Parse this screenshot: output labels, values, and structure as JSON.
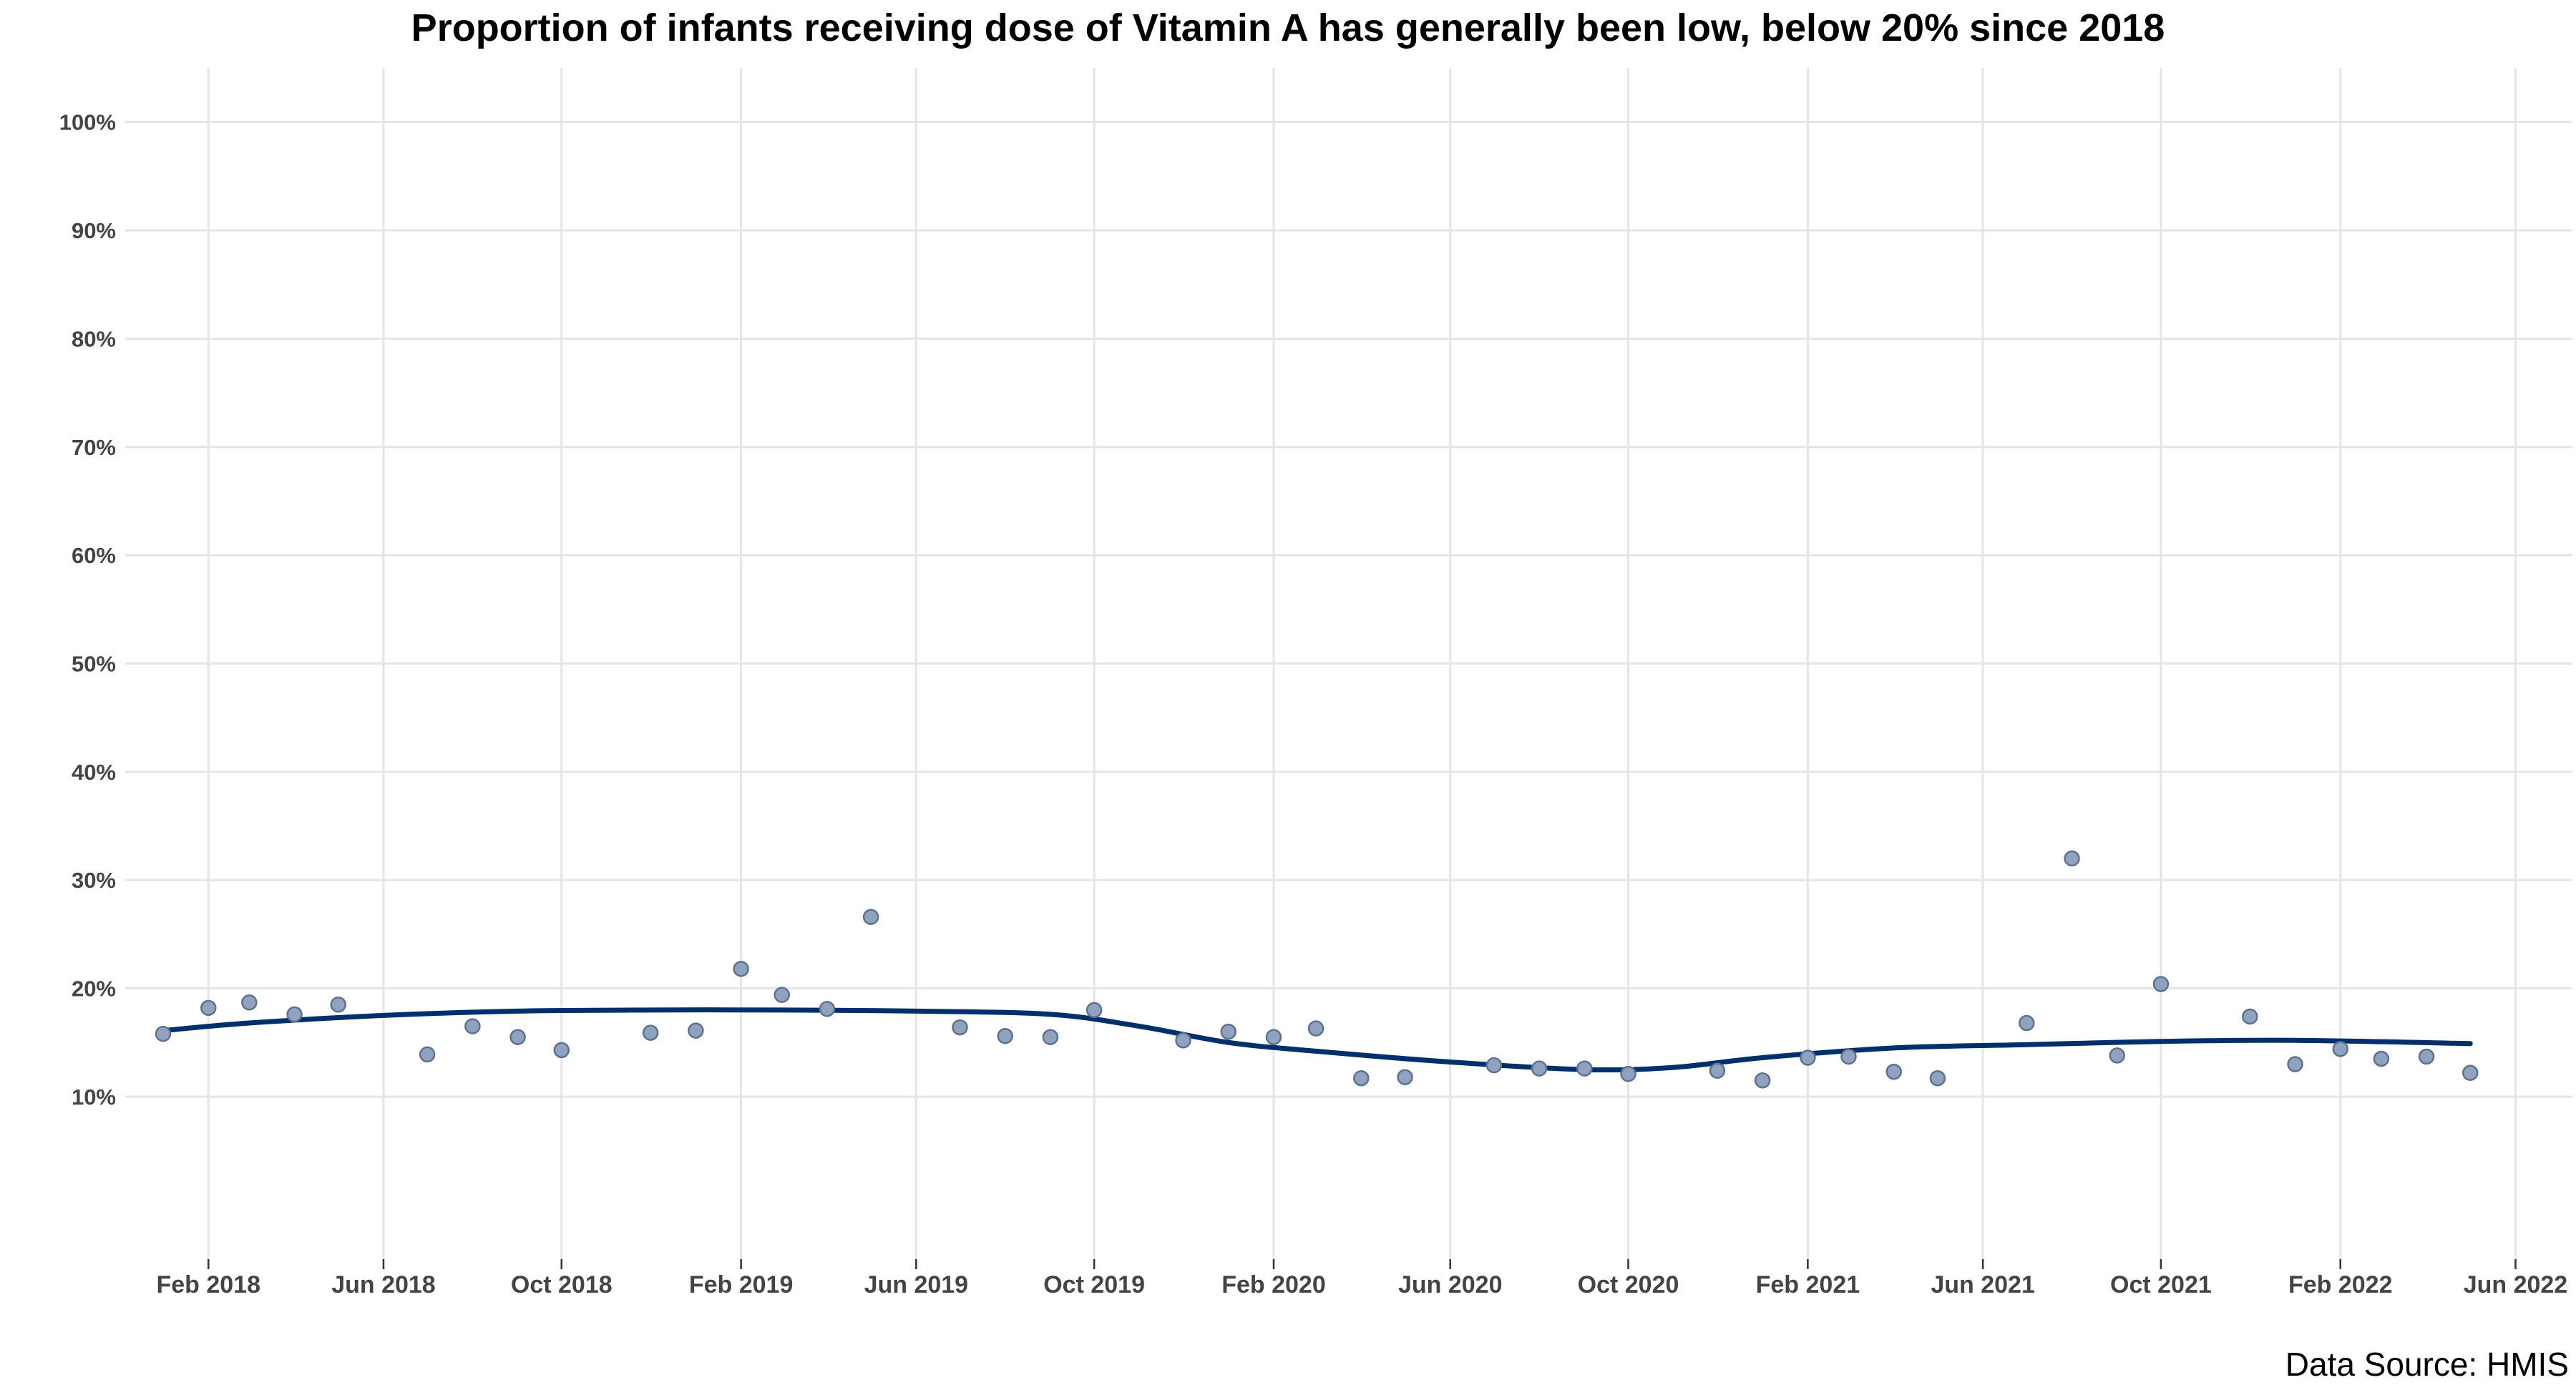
{
  "chart_data": {
    "type": "scatter",
    "title": "Proportion of infants receiving dose of Vitamin A has generally been low, below 20% since 2018",
    "xlabel": "",
    "ylabel": "",
    "xlim": [
      "2017-12-06",
      "2022-07-10"
    ],
    "ylim": [
      -5,
      105
    ],
    "y_tick_values": [
      10,
      20,
      30,
      40,
      50,
      60,
      70,
      80,
      90,
      100
    ],
    "y_tick_labels": [
      "10%",
      "20%",
      "30%",
      "40%",
      "50%",
      "60%",
      "70%",
      "80%",
      "90%",
      "100%"
    ],
    "x_tick_values": [
      "2018-02-01",
      "2018-06-01",
      "2018-10-01",
      "2019-02-01",
      "2019-06-01",
      "2019-10-01",
      "2020-02-01",
      "2020-06-01",
      "2020-10-01",
      "2021-02-01",
      "2021-06-01",
      "2021-10-01",
      "2022-02-01",
      "2022-06-01"
    ],
    "x_tick_labels": [
      "Feb 2018",
      "Jun 2018",
      "Oct 2018",
      "Feb 2019",
      "Jun 2019",
      "Oct 2019",
      "Feb 2020",
      "Jun 2020",
      "Oct 2020",
      "Feb 2021",
      "Jun 2021",
      "Oct 2021",
      "Feb 2022",
      "Jun 2022"
    ],
    "grid": true,
    "series": [
      {
        "type": "scatter",
        "color": "#8fa3bf",
        "x": [
          "2018-01-01",
          "2018-02-01",
          "2018-03-01",
          "2018-04-01",
          "2018-05-01",
          "2018-07-01",
          "2018-08-01",
          "2018-09-01",
          "2018-10-01",
          "2018-12-01",
          "2019-01-01",
          "2019-02-01",
          "2019-03-01",
          "2019-04-01",
          "2019-05-01",
          "2019-07-01",
          "2019-08-01",
          "2019-09-01",
          "2019-10-01",
          "2019-12-01",
          "2020-01-01",
          "2020-02-01",
          "2020-03-01",
          "2020-04-01",
          "2020-05-01",
          "2020-07-01",
          "2020-08-01",
          "2020-09-01",
          "2020-10-01",
          "2020-12-01",
          "2021-01-01",
          "2021-02-01",
          "2021-03-01",
          "2021-04-01",
          "2021-05-01",
          "2021-07-01",
          "2021-08-01",
          "2021-09-01",
          "2021-10-01",
          "2021-12-01",
          "2022-01-01",
          "2022-02-01",
          "2022-03-01",
          "2022-04-01",
          "2022-05-01"
        ],
        "y": [
          15.8,
          18.2,
          18.7,
          17.6,
          18.5,
          13.9,
          16.5,
          15.5,
          14.3,
          15.9,
          16.1,
          21.8,
          19.4,
          18.1,
          26.6,
          16.4,
          15.6,
          15.5,
          18.0,
          15.2,
          16.0,
          15.5,
          16.3,
          11.7,
          11.8,
          12.9,
          12.6,
          12.6,
          12.1,
          12.4,
          11.5,
          13.6,
          13.7,
          12.3,
          11.7,
          16.8,
          32.0,
          13.8,
          20.4,
          17.4,
          13.0,
          14.4,
          13.5,
          13.7,
          12.2
        ]
      },
      {
        "type": "line",
        "color": "#002f6c",
        "x": [
          "2018-01-01",
          "2018-03-01",
          "2018-06-01",
          "2018-09-01",
          "2018-12-01",
          "2019-03-01",
          "2019-06-01",
          "2019-09-01",
          "2019-11-01",
          "2020-01-01",
          "2020-03-01",
          "2020-06-01",
          "2020-09-01",
          "2020-11-01",
          "2021-01-01",
          "2021-04-01",
          "2021-07-01",
          "2021-10-01",
          "2022-01-01",
          "2022-05-01"
        ],
        "y": [
          16.1,
          16.8,
          17.5,
          17.9,
          18.0,
          18.0,
          17.9,
          17.6,
          16.5,
          15.0,
          14.2,
          13.2,
          12.5,
          12.7,
          13.6,
          14.5,
          14.8,
          15.1,
          15.2,
          14.9
        ]
      }
    ]
  },
  "footer": {
    "source": "Data Source: HMIS"
  }
}
